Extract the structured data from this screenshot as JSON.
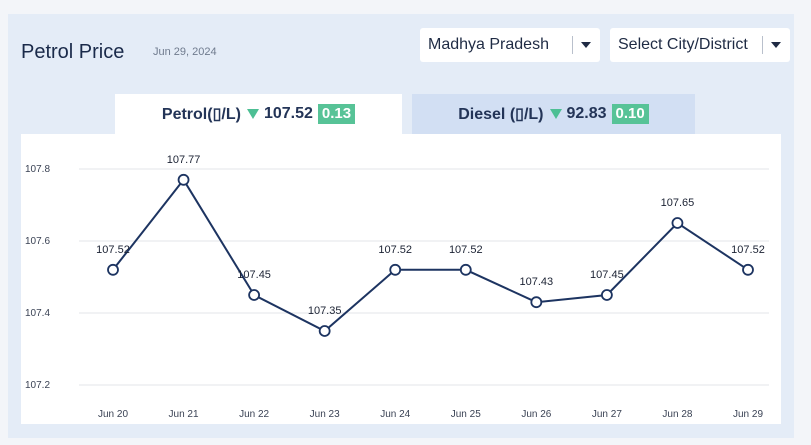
{
  "header": {
    "title": "Petrol Price",
    "date": "Jun 29, 2024"
  },
  "filters": {
    "state": "Madhya Pradesh",
    "city_placeholder": "Select City/District"
  },
  "tabs": [
    {
      "label": "Petrol(▯/L)",
      "value": "107.52",
      "change": "0.13",
      "trend": "down"
    },
    {
      "label": "Diesel (▯/L)",
      "value": "92.83",
      "change": "0.10",
      "trend": "down"
    }
  ],
  "colors": {
    "line": "#1d3461",
    "grid": "#e3e6ea",
    "badge": "#57c397",
    "active_tab": "#ffffff",
    "inactive_tab": "#d2dff3"
  },
  "chart_data": {
    "type": "line",
    "categories": [
      "Jun 20",
      "Jun 21",
      "Jun 22",
      "Jun 23",
      "Jun 24",
      "Jun 25",
      "Jun 26",
      "Jun 27",
      "Jun 28",
      "Jun 29"
    ],
    "series": [
      {
        "values": [
          107.52,
          107.77,
          107.45,
          107.35,
          107.52,
          107.52,
          107.43,
          107.45,
          107.65,
          107.52
        ]
      }
    ],
    "data_labels": [
      "107.52",
      "107.77",
      "107.45",
      "107.35",
      "107.52",
      "107.52",
      "107.43",
      "107.45",
      "107.65",
      "107.52"
    ],
    "ylim": [
      107.2,
      107.8
    ],
    "yticks": [
      "107.2",
      "107.4",
      "107.6",
      "107.8"
    ],
    "grid": true
  }
}
